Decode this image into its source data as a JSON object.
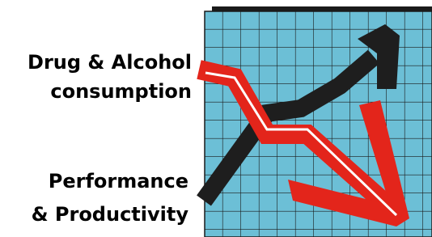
{
  "labels": {
    "top": {
      "line1": "Drug & Alcohol",
      "line2": "consumption"
    },
    "bottom": {
      "line1": "Performance",
      "line2": "& Productivity"
    }
  }
}
